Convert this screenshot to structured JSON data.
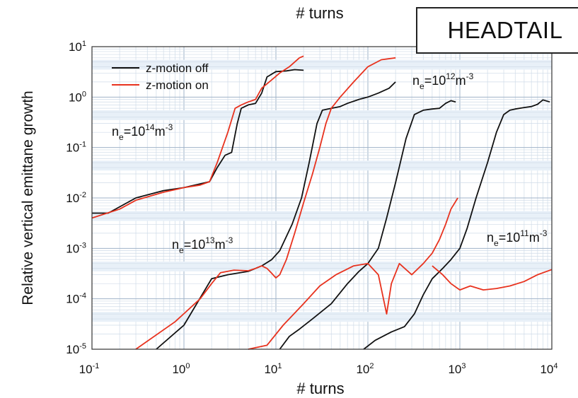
{
  "badge": {
    "label": "HEADTAIL"
  },
  "chart_data": {
    "type": "line",
    "title": "",
    "top_axis_label": "# turns",
    "xlabel": "# turns",
    "ylabel": "Relative vertical emittane growth",
    "xscale": "log",
    "yscale": "log",
    "xlim": [
      0.1,
      10000
    ],
    "ylim": [
      1e-05,
      10
    ],
    "grid": true,
    "x_tick_labels": [
      {
        "base": "10",
        "exp": "-1"
      },
      {
        "base": "10",
        "exp": "0"
      },
      {
        "base": "10",
        "exp": "1"
      },
      {
        "base": "10",
        "exp": "2"
      },
      {
        "base": "10",
        "exp": "3"
      },
      {
        "base": "10",
        "exp": "4"
      }
    ],
    "y_tick_labels": [
      {
        "base": "10",
        "exp": "-5"
      },
      {
        "base": "10",
        "exp": "-4"
      },
      {
        "base": "10",
        "exp": "-3"
      },
      {
        "base": "10",
        "exp": "-2"
      },
      {
        "base": "10",
        "exp": "-1"
      },
      {
        "base": "10",
        "exp": "0"
      },
      {
        "base": "10",
        "exp": "1"
      }
    ],
    "legend": {
      "placement": "top-left",
      "entries": [
        {
          "label": "z-motion off",
          "color": "#111111"
        },
        {
          "label": "z-motion on",
          "color": "#e8321e"
        }
      ]
    },
    "annotations": [
      {
        "id": "ne14",
        "pre": "n",
        "sub": "e",
        "mid": "=10",
        "sup": "14",
        "post": "m",
        "sup2": "-3"
      },
      {
        "id": "ne13",
        "pre": "n",
        "sub": "e",
        "mid": "=10",
        "sup": "13",
        "post": "m",
        "sup2": "-3"
      },
      {
        "id": "ne12",
        "pre": "n",
        "sub": "e",
        "mid": "=10",
        "sup": "12",
        "post": "m",
        "sup2": "-3"
      },
      {
        "id": "ne11",
        "pre": "n",
        "sub": "e",
        "mid": "=10",
        "sup": "11",
        "post": "m",
        "sup2": "-3"
      }
    ],
    "series": [
      {
        "group": "ne14",
        "motion": "off",
        "color": "#111111",
        "points": [
          [
            0.1,
            0.005
          ],
          [
            0.15,
            0.005
          ],
          [
            0.3,
            0.01
          ],
          [
            0.6,
            0.014
          ],
          [
            1.0,
            0.016
          ],
          [
            1.5,
            0.019
          ],
          [
            1.9,
            0.021
          ],
          [
            2.3,
            0.04
          ],
          [
            2.8,
            0.07
          ],
          [
            3.3,
            0.08
          ],
          [
            3.8,
            0.3
          ],
          [
            4.2,
            0.6
          ],
          [
            5.0,
            0.7
          ],
          [
            6.0,
            0.75
          ],
          [
            7.0,
            1.2
          ],
          [
            8.0,
            2.5
          ],
          [
            10,
            3.2
          ],
          [
            13,
            3.3
          ],
          [
            16,
            3.5
          ],
          [
            20,
            3.4
          ]
        ]
      },
      {
        "group": "ne14",
        "motion": "on",
        "color": "#e8321e",
        "points": [
          [
            0.1,
            0.004
          ],
          [
            0.2,
            0.006
          ],
          [
            0.3,
            0.009
          ],
          [
            0.6,
            0.013
          ],
          [
            1.0,
            0.016
          ],
          [
            1.5,
            0.018
          ],
          [
            1.9,
            0.021
          ],
          [
            2.3,
            0.05
          ],
          [
            3.0,
            0.2
          ],
          [
            3.6,
            0.6
          ],
          [
            4.2,
            0.7
          ],
          [
            5.0,
            0.8
          ],
          [
            6.0,
            0.9
          ],
          [
            7.0,
            1.5
          ],
          [
            9.0,
            2.2
          ],
          [
            11,
            3.0
          ],
          [
            14,
            4.0
          ],
          [
            18,
            6.0
          ],
          [
            20,
            6.5
          ]
        ]
      },
      {
        "group": "ne13",
        "motion": "off",
        "color": "#111111",
        "points": [
          [
            0.5,
            1e-05
          ],
          [
            1.0,
            3e-05
          ],
          [
            2.0,
            0.00025
          ],
          [
            3.0,
            0.0003
          ],
          [
            5.0,
            0.00035
          ],
          [
            7.0,
            0.00045
          ],
          [
            9.0,
            0.0006
          ],
          [
            11,
            0.0009
          ],
          [
            15,
            0.003
          ],
          [
            19,
            0.01
          ],
          [
            23,
            0.05
          ],
          [
            28,
            0.3
          ],
          [
            32,
            0.55
          ],
          [
            40,
            0.6
          ],
          [
            50,
            0.65
          ],
          [
            60,
            0.75
          ],
          [
            80,
            0.9
          ],
          [
            100,
            1.0
          ],
          [
            130,
            1.2
          ],
          [
            170,
            1.5
          ],
          [
            200,
            2.0
          ]
        ]
      },
      {
        "group": "ne13",
        "motion": "on",
        "color": "#e8321e",
        "points": [
          [
            0.3,
            1e-05
          ],
          [
            0.8,
            3.5e-05
          ],
          [
            1.5,
            0.0001
          ],
          [
            2.0,
            0.0002
          ],
          [
            2.5,
            0.00033
          ],
          [
            3.5,
            0.00037
          ],
          [
            5.0,
            0.00036
          ],
          [
            6.0,
            0.0004
          ],
          [
            7.0,
            0.00045
          ],
          [
            8.0,
            0.0004
          ],
          [
            9.0,
            0.00032
          ],
          [
            10,
            0.00026
          ],
          [
            11,
            0.0003
          ],
          [
            13,
            0.0006
          ],
          [
            16,
            0.002
          ],
          [
            20,
            0.008
          ],
          [
            25,
            0.03
          ],
          [
            30,
            0.1
          ],
          [
            35,
            0.3
          ],
          [
            40,
            0.6
          ],
          [
            50,
            1.0
          ],
          [
            70,
            2.0
          ],
          [
            100,
            4.0
          ],
          [
            140,
            5.5
          ],
          [
            200,
            6.0
          ]
        ]
      },
      {
        "group": "ne12",
        "motion": "off",
        "color": "#111111",
        "points": [
          [
            11,
            1e-05
          ],
          [
            14,
            1.8e-05
          ],
          [
            18,
            2.5e-05
          ],
          [
            25,
            4e-05
          ],
          [
            40,
            8e-05
          ],
          [
            60,
            0.0002
          ],
          [
            80,
            0.00035
          ],
          [
            100,
            0.0005
          ],
          [
            130,
            0.001
          ],
          [
            160,
            0.004
          ],
          [
            200,
            0.02
          ],
          [
            260,
            0.15
          ],
          [
            320,
            0.45
          ],
          [
            400,
            0.55
          ],
          [
            500,
            0.58
          ],
          [
            600,
            0.6
          ],
          [
            700,
            0.75
          ],
          [
            800,
            0.85
          ],
          [
            900,
            0.8
          ]
        ]
      },
      {
        "group": "ne12",
        "motion": "on",
        "color": "#e8321e",
        "points": [
          [
            5.0,
            1e-05
          ],
          [
            8.0,
            1.2e-05
          ],
          [
            12,
            3e-05
          ],
          [
            20,
            8e-05
          ],
          [
            30,
            0.00018
          ],
          [
            45,
            0.0003
          ],
          [
            70,
            0.00045
          ],
          [
            100,
            0.0005
          ],
          [
            130,
            0.0003
          ],
          [
            160,
            5e-05
          ],
          [
            180,
            0.0002
          ],
          [
            220,
            0.0005
          ],
          [
            300,
            0.0003
          ],
          [
            400,
            0.0005
          ],
          [
            500,
            0.0008
          ],
          [
            600,
            0.0015
          ],
          [
            700,
            0.003
          ],
          [
            800,
            0.006
          ],
          [
            950,
            0.01
          ]
        ]
      },
      {
        "group": "ne11",
        "motion": "off",
        "color": "#111111",
        "points": [
          [
            90,
            1e-05
          ],
          [
            120,
            1.5e-05
          ],
          [
            180,
            2.2e-05
          ],
          [
            250,
            2.8e-05
          ],
          [
            320,
            5e-05
          ],
          [
            400,
            0.00012
          ],
          [
            500,
            0.00025
          ],
          [
            650,
            0.0004
          ],
          [
            800,
            0.0006
          ],
          [
            1000,
            0.001
          ],
          [
            1200,
            0.0025
          ],
          [
            1500,
            0.01
          ],
          [
            2000,
            0.05
          ],
          [
            2500,
            0.2
          ],
          [
            3000,
            0.45
          ],
          [
            3500,
            0.55
          ],
          [
            4000,
            0.58
          ],
          [
            5000,
            0.62
          ],
          [
            6000,
            0.65
          ],
          [
            7000,
            0.72
          ],
          [
            8000,
            0.88
          ],
          [
            9500,
            0.8
          ]
        ]
      },
      {
        "group": "ne11",
        "motion": "on",
        "color": "#e8321e",
        "points": [
          [
            500,
            0.00045
          ],
          [
            650,
            0.0003
          ],
          [
            800,
            0.0002
          ],
          [
            1000,
            0.00015
          ],
          [
            1300,
            0.00018
          ],
          [
            1800,
            0.00015
          ],
          [
            2500,
            0.00016
          ],
          [
            3500,
            0.00018
          ],
          [
            5000,
            0.00022
          ],
          [
            7000,
            0.0003
          ],
          [
            10000,
            0.00038
          ]
        ]
      }
    ]
  }
}
